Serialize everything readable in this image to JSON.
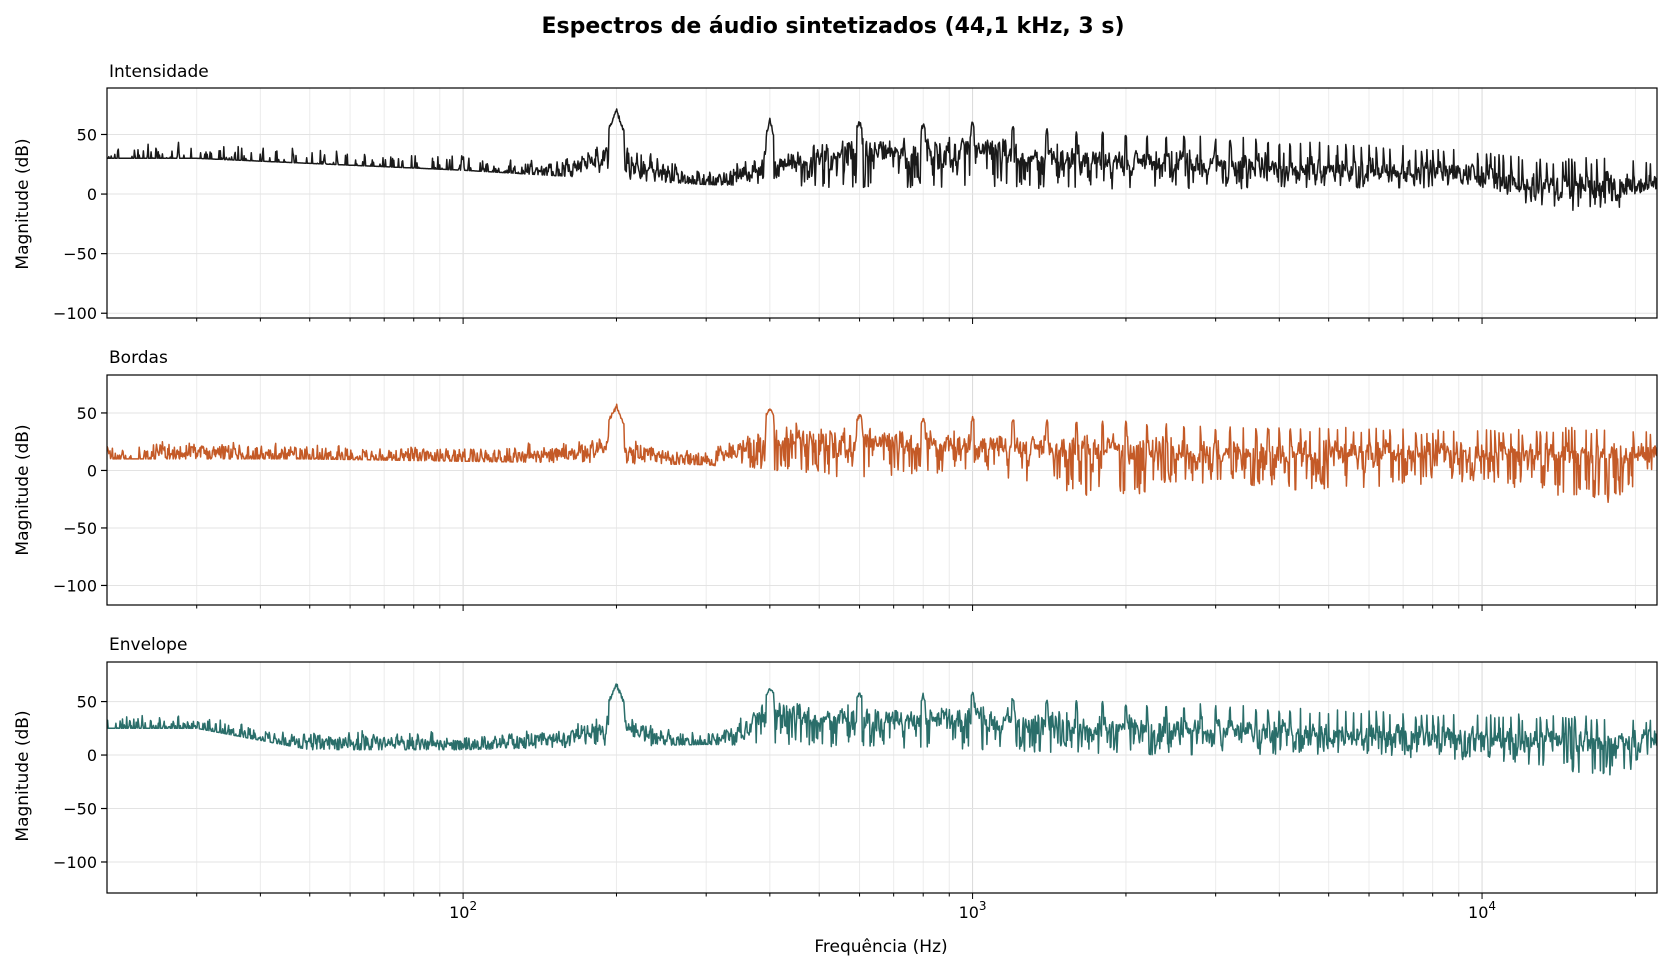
{
  "figure": {
    "title": "Espectros de áudio sintetizados (44,1 kHz, 3 s)"
  },
  "chart_data": [
    {
      "type": "line",
      "title": "Intensidade",
      "xlabel": "",
      "ylabel": "Magnitude (dB)",
      "xscale": "log",
      "xlim": [
        20,
        22050
      ],
      "ylim": [
        -104,
        89
      ],
      "yticks": [
        50,
        0,
        -50,
        -100
      ],
      "ytick_labels": [
        "50",
        "0",
        "−50",
        "−100"
      ],
      "grid": true,
      "color": "#1a1a1a",
      "fundamental_hz": 200,
      "x": [
        20,
        22,
        25,
        30,
        35,
        40,
        50,
        60,
        80,
        100,
        150,
        190,
        200,
        210,
        300,
        390,
        400,
        410,
        600,
        800,
        1000,
        1200,
        1400,
        2000,
        3000,
        5000,
        8000,
        10000,
        14000,
        17000,
        22050
      ],
      "y": [
        45,
        35,
        50,
        44,
        47,
        40,
        38,
        35,
        32,
        32,
        42,
        55,
        72,
        52,
        30,
        48,
        66,
        48,
        62,
        60,
        63,
        60,
        56,
        53,
        50,
        45,
        42,
        38,
        30,
        33,
        30
      ],
      "y_min_envelope": [
        {
          "x": 30,
          "y": 30
        },
        {
          "x": 100,
          "y": 20
        },
        {
          "x": 300,
          "y": 8
        },
        {
          "x": 600,
          "y": 5
        },
        {
          "x": 1000,
          "y": 5
        },
        {
          "x": 2000,
          "y": 4
        },
        {
          "x": 5000,
          "y": 5
        },
        {
          "x": 10000,
          "y": 5
        },
        {
          "x": 13500,
          "y": -15
        },
        {
          "x": 18500,
          "y": -12
        },
        {
          "x": 22050,
          "y": 5
        }
      ]
    },
    {
      "type": "line",
      "title": "Bordas",
      "xlabel": "",
      "ylabel": "Magnitude (dB)",
      "xscale": "log",
      "xlim": [
        20,
        22050
      ],
      "ylim": [
        -117,
        83
      ],
      "yticks": [
        50,
        0,
        -50,
        -100
      ],
      "ytick_labels": [
        "50",
        "0",
        "−50",
        "−100"
      ],
      "grid": true,
      "color": "#c45a27",
      "fundamental_hz": 200,
      "x": [
        20,
        22,
        25,
        30,
        40,
        50,
        60,
        80,
        100,
        150,
        190,
        200,
        210,
        300,
        400,
        600,
        800,
        1000,
        1400,
        2000,
        3000,
        5000,
        10000,
        22050
      ],
      "y": [
        40,
        10,
        40,
        38,
        36,
        33,
        32,
        35,
        30,
        38,
        45,
        58,
        42,
        30,
        55,
        50,
        48,
        48,
        45,
        44,
        40,
        40,
        38,
        38
      ],
      "y_min_envelope": [
        {
          "x": 25,
          "y": 10
        },
        {
          "x": 50,
          "y": 10
        },
        {
          "x": 100,
          "y": 8
        },
        {
          "x": 300,
          "y": 5
        },
        {
          "x": 600,
          "y": -8
        },
        {
          "x": 1000,
          "y": 0
        },
        {
          "x": 1800,
          "y": -25
        },
        {
          "x": 3000,
          "y": -10
        },
        {
          "x": 4500,
          "y": -18
        },
        {
          "x": 10000,
          "y": -10
        },
        {
          "x": 18000,
          "y": -30
        },
        {
          "x": 22050,
          "y": 0
        }
      ]
    },
    {
      "type": "line",
      "title": "Envelope",
      "xlabel": "Frequência (Hz)",
      "ylabel": "Magnitude (dB)",
      "xscale": "log",
      "xlim": [
        20,
        22050
      ],
      "ylim": [
        -129,
        87
      ],
      "yticks": [
        50,
        0,
        -50,
        -100
      ],
      "ytick_labels": [
        "50",
        "0",
        "−50",
        "−100"
      ],
      "xticks": [
        100,
        1000,
        10000
      ],
      "xtick_labels": [
        {
          "base": "10",
          "exp": "2"
        },
        {
          "base": "10",
          "exp": "3"
        },
        {
          "base": "10",
          "exp": "4"
        }
      ],
      "grid": true,
      "color": "#2a6e6a",
      "fundamental_hz": 200,
      "x": [
        20,
        22,
        25,
        30,
        40,
        50,
        60,
        80,
        100,
        150,
        190,
        200,
        210,
        300,
        400,
        600,
        800,
        1000,
        1200,
        2000,
        3000,
        5000,
        10000,
        22050
      ],
      "y": [
        40,
        42,
        47,
        45,
        37,
        35,
        35,
        35,
        32,
        40,
        50,
        68,
        50,
        30,
        64,
        60,
        58,
        60,
        56,
        50,
        48,
        44,
        40,
        37
      ],
      "y_min_envelope": [
        {
          "x": 30,
          "y": 25
        },
        {
          "x": 50,
          "y": 5
        },
        {
          "x": 100,
          "y": 5
        },
        {
          "x": 300,
          "y": 10
        },
        {
          "x": 1000,
          "y": 5
        },
        {
          "x": 2000,
          "y": 0
        },
        {
          "x": 5000,
          "y": 0
        },
        {
          "x": 10000,
          "y": -5
        },
        {
          "x": 18000,
          "y": -20
        },
        {
          "x": 22050,
          "y": -10
        }
      ]
    }
  ]
}
